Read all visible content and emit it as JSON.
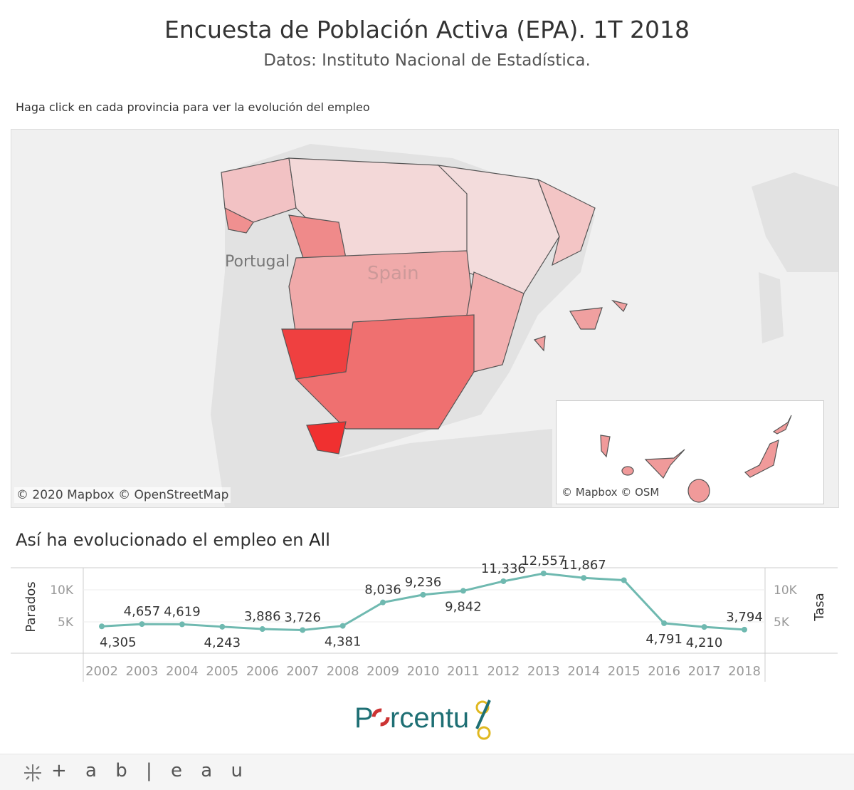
{
  "header": {
    "title": "Encuesta de Población Activa (EPA). 1T 2018",
    "subtitle": "Datos: Instituto Nacional de Estadística."
  },
  "map": {
    "hint": "Haga click en cada provincia para ver la evolución del empleo",
    "labels": {
      "portugal": "Portugal",
      "spain": "Spain"
    },
    "attribution_main": "© 2020 Mapbox  © OpenStreetMap",
    "attribution_inset": "© Mapbox  © OSM",
    "colors": {
      "low": "#f3dede",
      "mid": "#f0a0a0",
      "high": "#f03030"
    }
  },
  "chart_section": {
    "title_prefix": "Así ha evolucionado el empleo en ",
    "title_filter": "All"
  },
  "chart_data": {
    "type": "line",
    "x": [
      "2002",
      "2003",
      "2004",
      "2005",
      "2006",
      "2007",
      "2008",
      "2009",
      "2010",
      "2011",
      "2012",
      "2013",
      "2014",
      "2015",
      "2016",
      "2017",
      "2018"
    ],
    "series": [
      {
        "values": [
          4305,
          4657,
          4619,
          4243,
          3886,
          3726,
          4381,
          8036,
          9236,
          9842,
          11336,
          12557,
          11867,
          11500,
          4791,
          4210,
          3794
        ],
        "labels": [
          "4,305",
          "4,657",
          "4,619",
          "4,243",
          "3,886",
          "3,726",
          "4,381",
          "8,036",
          "9,236",
          "9,842",
          "11,336",
          "12,557",
          "11,867",
          "",
          "4,791",
          "4,210",
          "3,794"
        ]
      }
    ],
    "ylabel_left": "Parados",
    "ylabel_right": "Tasa",
    "yticks": [
      "5K",
      "10K"
    ],
    "ytick_values": [
      5000,
      10000
    ],
    "ylim": [
      0,
      13300
    ],
    "grid": true,
    "color": "#6fb9b0"
  },
  "logo": {
    "text": "Porcentu"
  },
  "footer": {
    "brand": "+ a b | e a u"
  }
}
